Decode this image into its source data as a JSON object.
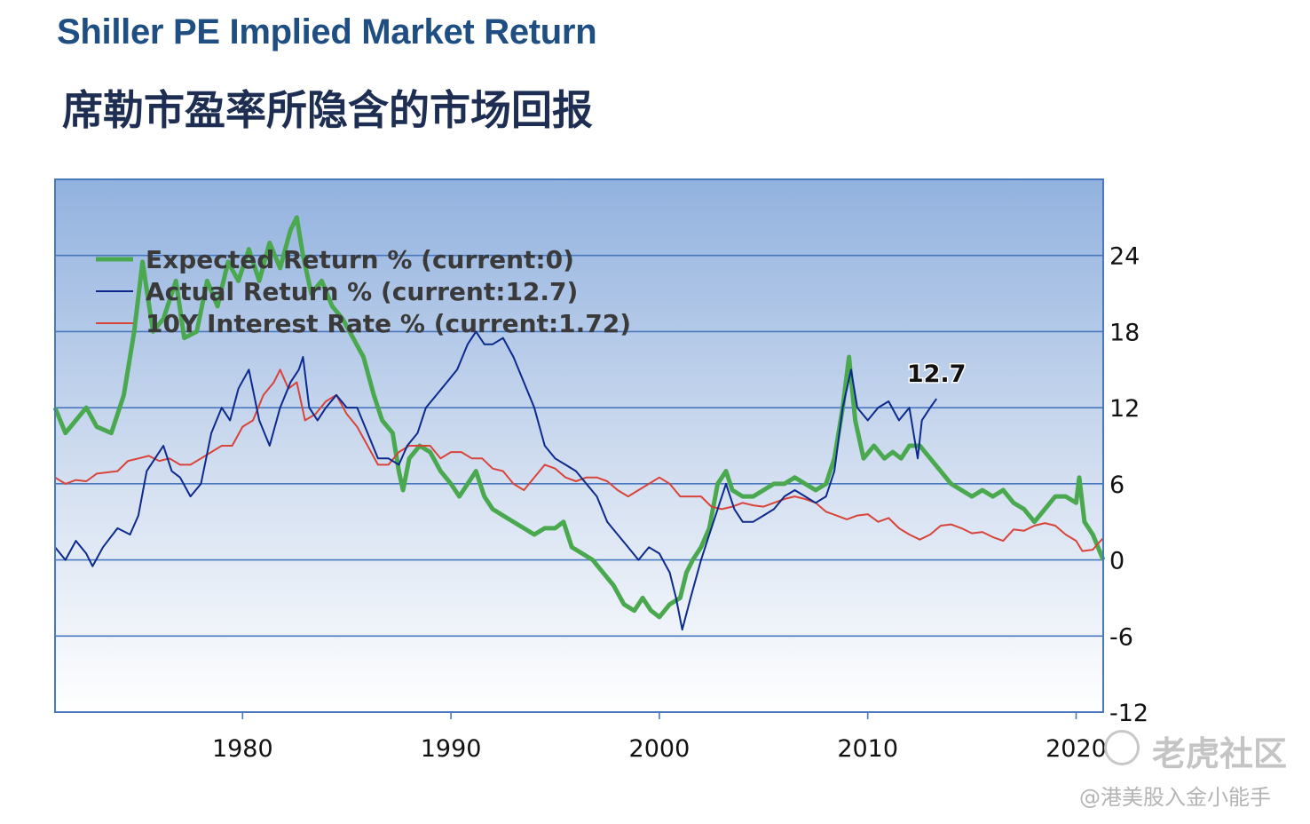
{
  "header": {
    "title_en": "Shiller PE Implied Market Return",
    "title_cn": "席勒市盈率所隐含的市场回报"
  },
  "watermark": {
    "brand": "老虎社区",
    "author": "@港美股入金小能手"
  },
  "colors": {
    "expected": "#4aa84f",
    "actual": "#0c2a8c",
    "rate": "#d8443a",
    "grid": "#4a78be",
    "plot_top": "#92b2df",
    "plot_bottom": "#ffffff"
  },
  "chart_data": {
    "type": "line",
    "title": "Shiller PE Implied Market Return",
    "xlim": [
      1971,
      2021.3
    ],
    "ylim": [
      -12,
      30
    ],
    "x_ticks": [
      1980,
      1990,
      2000,
      2010,
      2020
    ],
    "y_ticks": [
      24,
      18,
      12,
      6,
      0,
      -6,
      -12
    ],
    "y_axis_side": "right",
    "grid": "horizontal",
    "legend_position": "top-left",
    "annotation": {
      "text": "12.7",
      "x": 2013.3,
      "y": 12.7
    },
    "series": [
      {
        "name": "Expected Return % (current:0)",
        "color": "#4aa84f",
        "points": [
          [
            1971,
            12
          ],
          [
            1971.5,
            10
          ],
          [
            1972,
            11
          ],
          [
            1972.5,
            12
          ],
          [
            1973,
            10.5
          ],
          [
            1973.7,
            10
          ],
          [
            1974.3,
            13
          ],
          [
            1974.8,
            18
          ],
          [
            1975.2,
            23.5
          ],
          [
            1975.7,
            18
          ],
          [
            1976.2,
            19
          ],
          [
            1976.8,
            22
          ],
          [
            1977.2,
            17.5
          ],
          [
            1977.8,
            18
          ],
          [
            1978.3,
            22
          ],
          [
            1978.8,
            20
          ],
          [
            1979.3,
            23.5
          ],
          [
            1979.8,
            22
          ],
          [
            1980.3,
            24.5
          ],
          [
            1980.8,
            22
          ],
          [
            1981.3,
            25
          ],
          [
            1981.8,
            23
          ],
          [
            1982.3,
            26
          ],
          [
            1982.6,
            27
          ],
          [
            1982.9,
            24
          ],
          [
            1983.3,
            21
          ],
          [
            1983.8,
            22
          ],
          [
            1984.3,
            20
          ],
          [
            1984.8,
            19
          ],
          [
            1985.3,
            17.5
          ],
          [
            1985.8,
            16
          ],
          [
            1986.3,
            13
          ],
          [
            1986.7,
            11
          ],
          [
            1987.2,
            10
          ],
          [
            1987.5,
            7
          ],
          [
            1987.7,
            5.5
          ],
          [
            1988,
            8
          ],
          [
            1988.5,
            9
          ],
          [
            1989,
            8.5
          ],
          [
            1989.5,
            7
          ],
          [
            1990,
            6
          ],
          [
            1990.4,
            5
          ],
          [
            1990.8,
            6
          ],
          [
            1991.2,
            7
          ],
          [
            1991.6,
            5
          ],
          [
            1992,
            4
          ],
          [
            1992.5,
            3.5
          ],
          [
            1993,
            3
          ],
          [
            1993.5,
            2.5
          ],
          [
            1994,
            2
          ],
          [
            1994.5,
            2.5
          ],
          [
            1995,
            2.5
          ],
          [
            1995.4,
            3
          ],
          [
            1995.8,
            1
          ],
          [
            1996.3,
            0.5
          ],
          [
            1996.8,
            0
          ],
          [
            1997.3,
            -1
          ],
          [
            1997.8,
            -2
          ],
          [
            1998.3,
            -3.5
          ],
          [
            1998.8,
            -4
          ],
          [
            1999.2,
            -3
          ],
          [
            1999.6,
            -4
          ],
          [
            2000,
            -4.5
          ],
          [
            2000.5,
            -3.5
          ],
          [
            2001,
            -3
          ],
          [
            2001.3,
            -1
          ],
          [
            2001.6,
            0
          ],
          [
            2002,
            1
          ],
          [
            2002.4,
            2.5
          ],
          [
            2002.8,
            6
          ],
          [
            2003.2,
            7
          ],
          [
            2003.5,
            5.5
          ],
          [
            2004,
            5
          ],
          [
            2004.5,
            5
          ],
          [
            2005,
            5.5
          ],
          [
            2005.5,
            6
          ],
          [
            2006,
            6
          ],
          [
            2006.5,
            6.5
          ],
          [
            2007,
            6
          ],
          [
            2007.5,
            5.5
          ],
          [
            2008,
            6
          ],
          [
            2008.4,
            8
          ],
          [
            2008.8,
            12
          ],
          [
            2009.1,
            16
          ],
          [
            2009.4,
            11
          ],
          [
            2009.8,
            8
          ],
          [
            2010.3,
            9
          ],
          [
            2010.8,
            8
          ],
          [
            2011.2,
            8.5
          ],
          [
            2011.6,
            8
          ],
          [
            2012,
            9
          ],
          [
            2012.5,
            9
          ],
          [
            2013,
            8
          ],
          [
            2013.5,
            7
          ],
          [
            2014,
            6
          ],
          [
            2014.5,
            5.5
          ],
          [
            2015,
            5
          ],
          [
            2015.5,
            5.5
          ],
          [
            2016,
            5
          ],
          [
            2016.5,
            5.5
          ],
          [
            2017,
            4.5
          ],
          [
            2017.5,
            4
          ],
          [
            2018,
            3
          ],
          [
            2018.5,
            4
          ],
          [
            2019,
            5
          ],
          [
            2019.5,
            5
          ],
          [
            2020,
            4.5
          ],
          [
            2020.15,
            6.5
          ],
          [
            2020.4,
            3
          ],
          [
            2020.8,
            2
          ],
          [
            2021.3,
            0
          ]
        ]
      },
      {
        "name": "Actual Return % (current:12.7)",
        "color": "#0c2a8c",
        "points": [
          [
            1971,
            1
          ],
          [
            1971.5,
            0
          ],
          [
            1972,
            1.5
          ],
          [
            1972.5,
            0.5
          ],
          [
            1972.8,
            -0.5
          ],
          [
            1973.3,
            1
          ],
          [
            1974,
            2.5
          ],
          [
            1974.6,
            2
          ],
          [
            1975,
            3.5
          ],
          [
            1975.4,
            7
          ],
          [
            1975.8,
            8
          ],
          [
            1976.2,
            9
          ],
          [
            1976.6,
            7
          ],
          [
            1977,
            6.5
          ],
          [
            1977.5,
            5
          ],
          [
            1978,
            6
          ],
          [
            1978.5,
            10
          ],
          [
            1979,
            12
          ],
          [
            1979.4,
            11
          ],
          [
            1979.8,
            13.5
          ],
          [
            1980.3,
            15
          ],
          [
            1980.8,
            11
          ],
          [
            1981.3,
            9
          ],
          [
            1981.8,
            12
          ],
          [
            1982.3,
            14
          ],
          [
            1982.7,
            15
          ],
          [
            1982.9,
            16
          ],
          [
            1983.2,
            12
          ],
          [
            1983.6,
            11
          ],
          [
            1984,
            12
          ],
          [
            1984.5,
            13
          ],
          [
            1985,
            12
          ],
          [
            1985.5,
            12
          ],
          [
            1986,
            10
          ],
          [
            1986.5,
            8
          ],
          [
            1987,
            8
          ],
          [
            1987.5,
            7.5
          ],
          [
            1987.9,
            9
          ],
          [
            1988.4,
            10
          ],
          [
            1988.8,
            12
          ],
          [
            1989.3,
            13
          ],
          [
            1989.8,
            14
          ],
          [
            1990.3,
            15
          ],
          [
            1990.8,
            17
          ],
          [
            1991.2,
            18
          ],
          [
            1991.6,
            17
          ],
          [
            1992,
            17
          ],
          [
            1992.5,
            17.5
          ],
          [
            1993,
            16
          ],
          [
            1993.5,
            14
          ],
          [
            1994,
            12
          ],
          [
            1994.5,
            9
          ],
          [
            1995,
            8
          ],
          [
            1995.5,
            7.5
          ],
          [
            1996,
            7
          ],
          [
            1996.5,
            6
          ],
          [
            1997,
            5
          ],
          [
            1997.5,
            3
          ],
          [
            1998,
            2
          ],
          [
            1998.5,
            1
          ],
          [
            1999,
            0
          ],
          [
            1999.5,
            1
          ],
          [
            2000,
            0.5
          ],
          [
            2000.5,
            -1
          ],
          [
            2000.8,
            -3
          ],
          [
            2001.1,
            -5.5
          ],
          [
            2001.5,
            -3
          ],
          [
            2002,
            0
          ],
          [
            2002.4,
            2
          ],
          [
            2002.8,
            4
          ],
          [
            2003.2,
            6
          ],
          [
            2003.6,
            4
          ],
          [
            2004,
            3
          ],
          [
            2004.5,
            3
          ],
          [
            2005,
            3.5
          ],
          [
            2005.5,
            4
          ],
          [
            2006,
            5
          ],
          [
            2006.5,
            5.5
          ],
          [
            2007,
            5
          ],
          [
            2007.5,
            4.5
          ],
          [
            2008,
            5
          ],
          [
            2008.4,
            7
          ],
          [
            2008.8,
            12
          ],
          [
            2009.2,
            15
          ],
          [
            2009.5,
            12
          ],
          [
            2010,
            11
          ],
          [
            2010.5,
            12
          ],
          [
            2011,
            12.5
          ],
          [
            2011.5,
            11
          ],
          [
            2012,
            12
          ],
          [
            2012.4,
            8
          ],
          [
            2012.6,
            11
          ],
          [
            2013,
            12
          ],
          [
            2013.3,
            12.7
          ]
        ]
      },
      {
        "name": "10Y Interest Rate % (current:1.72)",
        "color": "#d8443a",
        "points": [
          [
            1971,
            6.5
          ],
          [
            1971.5,
            6
          ],
          [
            1972,
            6.3
          ],
          [
            1972.5,
            6.2
          ],
          [
            1973,
            6.8
          ],
          [
            1974,
            7
          ],
          [
            1974.5,
            7.8
          ],
          [
            1975,
            8
          ],
          [
            1975.5,
            8.2
          ],
          [
            1976,
            7.8
          ],
          [
            1976.5,
            8
          ],
          [
            1977,
            7.5
          ],
          [
            1977.5,
            7.5
          ],
          [
            1978,
            8
          ],
          [
            1978.5,
            8.5
          ],
          [
            1979,
            9
          ],
          [
            1979.5,
            9
          ],
          [
            1980,
            10.5
          ],
          [
            1980.5,
            11
          ],
          [
            1981,
            13
          ],
          [
            1981.5,
            14
          ],
          [
            1981.8,
            15
          ],
          [
            1982.2,
            13.5
          ],
          [
            1982.6,
            14
          ],
          [
            1983,
            11
          ],
          [
            1983.5,
            11.5
          ],
          [
            1984,
            12.5
          ],
          [
            1984.5,
            13
          ],
          [
            1985,
            11.5
          ],
          [
            1985.5,
            10.5
          ],
          [
            1986,
            9
          ],
          [
            1986.5,
            7.5
          ],
          [
            1987,
            7.5
          ],
          [
            1987.5,
            8.5
          ],
          [
            1988,
            9
          ],
          [
            1988.5,
            9
          ],
          [
            1989,
            9
          ],
          [
            1989.5,
            8
          ],
          [
            1990,
            8.5
          ],
          [
            1990.5,
            8.5
          ],
          [
            1991,
            8
          ],
          [
            1991.5,
            8
          ],
          [
            1992,
            7.2
          ],
          [
            1992.5,
            7
          ],
          [
            1993,
            6
          ],
          [
            1993.5,
            5.5
          ],
          [
            1994,
            6.5
          ],
          [
            1994.5,
            7.5
          ],
          [
            1995,
            7.2
          ],
          [
            1995.5,
            6.5
          ],
          [
            1996,
            6.2
          ],
          [
            1996.5,
            6.5
          ],
          [
            1997,
            6.5
          ],
          [
            1997.5,
            6.2
          ],
          [
            1998,
            5.5
          ],
          [
            1998.5,
            5
          ],
          [
            1999,
            5.5
          ],
          [
            1999.5,
            6
          ],
          [
            2000,
            6.5
          ],
          [
            2000.5,
            6
          ],
          [
            2001,
            5
          ],
          [
            2001.5,
            5
          ],
          [
            2002,
            5
          ],
          [
            2002.5,
            4.2
          ],
          [
            2003,
            4
          ],
          [
            2003.5,
            4.2
          ],
          [
            2004,
            4.5
          ],
          [
            2004.5,
            4.3
          ],
          [
            2005,
            4.2
          ],
          [
            2005.5,
            4.5
          ],
          [
            2006,
            4.8
          ],
          [
            2006.5,
            5
          ],
          [
            2007,
            4.8
          ],
          [
            2007.5,
            4.5
          ],
          [
            2008,
            3.8
          ],
          [
            2008.5,
            3.5
          ],
          [
            2009,
            3.2
          ],
          [
            2009.5,
            3.5
          ],
          [
            2010,
            3.6
          ],
          [
            2010.5,
            3
          ],
          [
            2011,
            3.3
          ],
          [
            2011.5,
            2.5
          ],
          [
            2012,
            2
          ],
          [
            2012.5,
            1.6
          ],
          [
            2013,
            2
          ],
          [
            2013.5,
            2.7
          ],
          [
            2014,
            2.8
          ],
          [
            2014.5,
            2.5
          ],
          [
            2015,
            2.1
          ],
          [
            2015.5,
            2.2
          ],
          [
            2016,
            1.8
          ],
          [
            2016.5,
            1.5
          ],
          [
            2017,
            2.4
          ],
          [
            2017.5,
            2.3
          ],
          [
            2018,
            2.7
          ],
          [
            2018.5,
            2.9
          ],
          [
            2019,
            2.7
          ],
          [
            2019.5,
            2
          ],
          [
            2020,
            1.5
          ],
          [
            2020.3,
            0.7
          ],
          [
            2020.8,
            0.8
          ],
          [
            2021,
            1.2
          ],
          [
            2021.3,
            1.72
          ]
        ]
      }
    ]
  }
}
